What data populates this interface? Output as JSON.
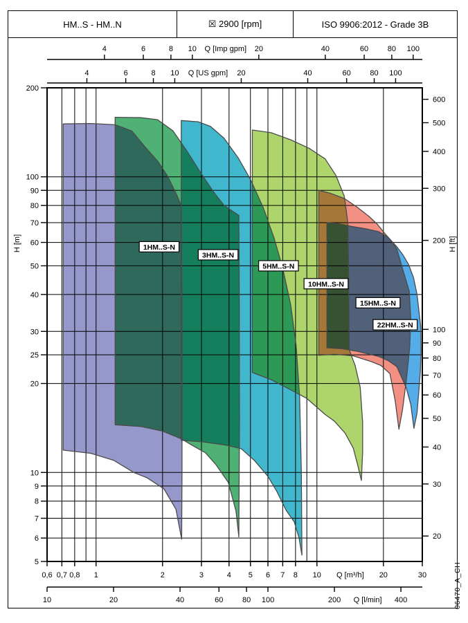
{
  "header": {
    "left": "HM..S - HM..N",
    "center": "☒ 2900 [rpm]",
    "right": "ISO 9906:2012 - Grade 3B"
  },
  "watermark": "06470_A_CH",
  "chart_data": {
    "type": "area",
    "description": "Pump family performance ranges, head H versus flow Q, log-log scales",
    "x_axis": {
      "label": "Q [m³/h]",
      "scale": "log",
      "min": 0.6,
      "max": 30,
      "ticks": [
        0.6,
        0.7,
        0.8,
        1,
        2,
        3,
        4,
        5,
        6,
        7,
        8,
        10,
        20,
        30
      ],
      "tick_labels": [
        "0,6",
        "0,7",
        "0,8",
        "1",
        "2",
        "3",
        "4",
        "5",
        "6",
        "7",
        "8",
        "10",
        "20",
        "30"
      ],
      "gridlines": [
        0.7,
        0.8,
        0.9,
        1,
        2,
        3,
        4,
        5,
        6,
        7,
        8,
        9,
        10,
        20
      ],
      "label_between": [
        10,
        20
      ]
    },
    "y_axis": {
      "label": "H [m]",
      "scale": "log",
      "min": 5,
      "max": 200,
      "ticks": [
        5,
        6,
        7,
        8,
        9,
        10,
        20,
        25,
        30,
        40,
        50,
        60,
        70,
        80,
        90,
        100,
        200
      ],
      "gridlines": [
        6,
        7,
        8,
        9,
        10,
        20,
        25,
        30,
        40,
        50,
        60,
        70,
        80,
        90,
        100
      ]
    },
    "y2_axis": {
      "label": "H [ft]",
      "unit_factor_m": 0.3048,
      "ticks": [
        20,
        30,
        40,
        50,
        60,
        70,
        80,
        90,
        100,
        200,
        300,
        400,
        500,
        600
      ]
    },
    "x_top_axes": [
      {
        "label": "Q [Imp gpm]",
        "unit_factor_m3h": 0.27276,
        "ticks": [
          4,
          6,
          8,
          10,
          20,
          40,
          60,
          80,
          100
        ],
        "label_between": [
          10,
          20
        ]
      },
      {
        "label": "Q [US gpm]",
        "unit_factor_m3h": 0.227125,
        "ticks": [
          4,
          6,
          8,
          10,
          20,
          40,
          60,
          80,
          100
        ],
        "label_between": [
          10,
          20
        ]
      }
    ],
    "x_bottom_axes": [
      {
        "label": "Q [l/min]",
        "unit_factor_m3h": 0.06,
        "ticks": [
          10,
          20,
          40,
          60,
          80,
          100,
          200,
          400
        ],
        "label_between": [
          200,
          400
        ]
      }
    ],
    "series": [
      {
        "name": "1HM..S-N",
        "color": "#9697cb",
        "label_at": [
          1.93,
          58
        ],
        "outline": [
          [
            0.71,
            151
          ],
          [
            0.95,
            151.5
          ],
          [
            1.22,
            150
          ],
          [
            1.45,
            143
          ],
          [
            1.67,
            126
          ],
          [
            1.9,
            113
          ],
          [
            2.1,
            101
          ],
          [
            2.3,
            88
          ],
          [
            2.43,
            80
          ],
          [
            2.44,
            50
          ],
          [
            2.45,
            25
          ],
          [
            2.45,
            10
          ],
          [
            2.44,
            5.95
          ],
          [
            2.3,
            7.5
          ],
          [
            2.03,
            8.8
          ],
          [
            1.7,
            9.6
          ],
          [
            1.48,
            10
          ],
          [
            1.2,
            11
          ],
          [
            0.95,
            11.6
          ],
          [
            0.71,
            11.9
          ]
        ]
      },
      {
        "name": "3HM..S-N",
        "color": "#4fb173",
        "label_at": [
          3.57,
          54.5
        ],
        "outline": [
          [
            1.22,
            159
          ],
          [
            1.6,
            158.5
          ],
          [
            1.9,
            156
          ],
          [
            2.23,
            143
          ],
          [
            2.6,
            121
          ],
          [
            2.98,
            103
          ],
          [
            3.4,
            89
          ],
          [
            3.8,
            80
          ],
          [
            4.2,
            76
          ],
          [
            4.43,
            74
          ],
          [
            4.45,
            40
          ],
          [
            4.46,
            15
          ],
          [
            4.43,
            6.05
          ],
          [
            4.3,
            7.4
          ],
          [
            3.97,
            9.25
          ],
          [
            3.5,
            10.6
          ],
          [
            3.13,
            11.65
          ],
          [
            2.7,
            12.4
          ],
          [
            2.43,
            13
          ],
          [
            2.0,
            13.8
          ],
          [
            1.6,
            14.3
          ],
          [
            1.22,
            14.5
          ]
        ]
      },
      {
        "name": "5HM..S-N",
        "color": "#41b7cd",
        "label_at": [
          6.7,
          50
        ],
        "outline": [
          [
            2.43,
            155
          ],
          [
            2.9,
            153.5
          ],
          [
            3.3,
            148
          ],
          [
            3.8,
            135
          ],
          [
            4.4,
            116
          ],
          [
            5.0,
            98
          ],
          [
            5.7,
            79
          ],
          [
            6.4,
            62
          ],
          [
            7.0,
            49
          ],
          [
            7.6,
            37
          ],
          [
            8.05,
            27
          ],
          [
            8.35,
            18
          ],
          [
            8.5,
            10
          ],
          [
            8.55,
            5.25
          ],
          [
            8.3,
            6.0
          ],
          [
            7.9,
            6.8
          ],
          [
            7.25,
            7.45
          ],
          [
            6.6,
            8.6
          ],
          [
            6.0,
            9.7
          ],
          [
            5.2,
            11
          ],
          [
            4.53,
            12.05
          ],
          [
            3.8,
            12.4
          ],
          [
            3.0,
            12.7
          ],
          [
            2.43,
            12.85
          ]
        ]
      },
      {
        "name": "10HM..S-N",
        "color": "#aed56c",
        "label_at": [
          11,
          43.5
        ],
        "outline": [
          [
            5.1,
            144
          ],
          [
            6.2,
            141
          ],
          [
            7.6,
            133.5
          ],
          [
            9.2,
            125
          ],
          [
            10.9,
            115
          ],
          [
            12.2,
            101
          ],
          [
            13.3,
            86
          ],
          [
            13.8,
            70
          ],
          [
            13.9,
            50
          ],
          [
            13.95,
            35
          ],
          [
            14.0,
            26
          ],
          [
            14.9,
            23
          ],
          [
            15.7,
            19.4
          ],
          [
            16.1,
            14.8
          ],
          [
            16.1,
            11.7
          ],
          [
            15.9,
            9.4
          ],
          [
            15.3,
            10.6
          ],
          [
            14.6,
            12.1
          ],
          [
            13.4,
            13.6
          ],
          [
            12,
            14.9
          ],
          [
            10.9,
            15.7
          ],
          [
            9,
            17.8
          ],
          [
            7.25,
            19.4
          ],
          [
            6.2,
            20.6
          ],
          [
            5.1,
            21.8
          ]
        ]
      },
      {
        "name": "15HM..S-N",
        "color": "#f29084",
        "label_at": [
          18.9,
          37.5
        ],
        "outline": [
          [
            10.2,
            90
          ],
          [
            11.5,
            88
          ],
          [
            13.3,
            84.5
          ],
          [
            15.2,
            79
          ],
          [
            17.2,
            73.5
          ],
          [
            18.8,
            69
          ],
          [
            20.2,
            64.6
          ],
          [
            21.6,
            61
          ],
          [
            23,
            57
          ],
          [
            24.5,
            48.5
          ],
          [
            26.2,
            41
          ],
          [
            26.6,
            33
          ],
          [
            26.3,
            26.5
          ],
          [
            25.4,
            20.5
          ],
          [
            24.4,
            16.3
          ],
          [
            23.5,
            14
          ],
          [
            22.6,
            17.5
          ],
          [
            21.4,
            21.6
          ],
          [
            19.5,
            23
          ],
          [
            17.7,
            23.7
          ],
          [
            14.6,
            24.8
          ],
          [
            12,
            25.1
          ],
          [
            10.2,
            24.9
          ]
        ]
      },
      {
        "name": "22HM..S-N",
        "color": "#54ace9",
        "label_at": [
          22.6,
          31.6
        ],
        "outline": [
          [
            11.1,
            70
          ],
          [
            12.4,
            69.5
          ],
          [
            14.3,
            68
          ],
          [
            16.5,
            66.8
          ],
          [
            19,
            65.3
          ],
          [
            21,
            62.5
          ],
          [
            23,
            58
          ],
          [
            24.5,
            54.5
          ],
          [
            26,
            50.5
          ],
          [
            27.4,
            45.5
          ],
          [
            28.4,
            40
          ],
          [
            28.9,
            35.7
          ],
          [
            29.5,
            31.2
          ],
          [
            29.6,
            25.7
          ],
          [
            29.4,
            22
          ],
          [
            28.9,
            18.6
          ],
          [
            28.4,
            15.9
          ],
          [
            27.5,
            14.1
          ],
          [
            26.6,
            17
          ],
          [
            25.4,
            19.3
          ],
          [
            23,
            22.8
          ],
          [
            21,
            23.9
          ],
          [
            19,
            24.7
          ],
          [
            15.2,
            25.7
          ],
          [
            13,
            26.2
          ],
          [
            11.1,
            26.4
          ]
        ]
      }
    ]
  }
}
